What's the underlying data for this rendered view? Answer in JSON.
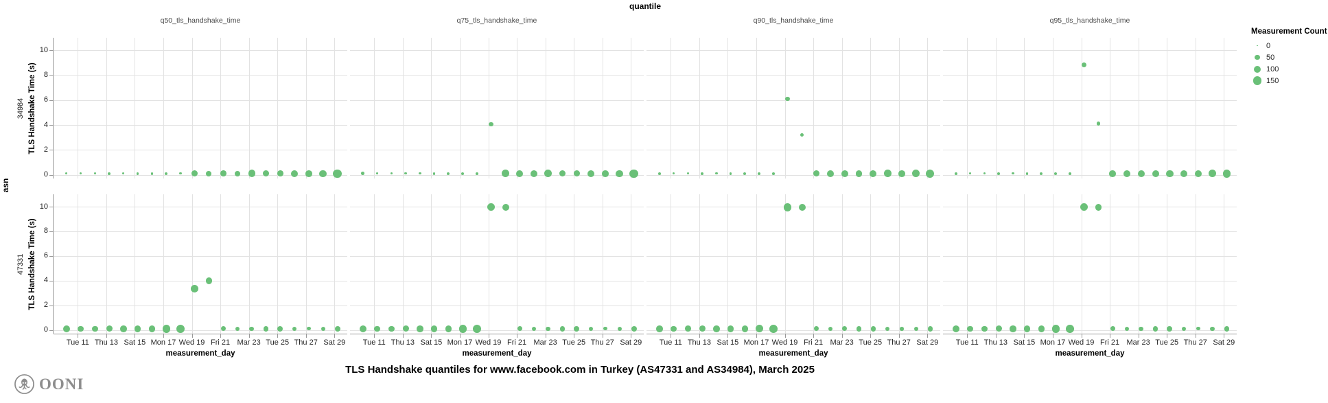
{
  "header": {
    "column_title": "quantile",
    "row_title": "asn"
  },
  "facets": [
    {
      "title": "q50_tls_handshake_time"
    },
    {
      "title": "q75_tls_handshake_time"
    },
    {
      "title": "q90_tls_handshake_time"
    },
    {
      "title": "q95_tls_handshake_time"
    }
  ],
  "rows": [
    {
      "label": "34984"
    },
    {
      "label": "47331"
    }
  ],
  "y_axis": {
    "title": "TLS Handshake Time (s)",
    "ticks": [
      0,
      2,
      4,
      6,
      8,
      10
    ]
  },
  "x_axis": {
    "title": "measurement_day",
    "ticks": [
      {
        "day": 11,
        "label": "Tue 11"
      },
      {
        "day": 13,
        "label": "Thu 13"
      },
      {
        "day": 15,
        "label": "Sat 15"
      },
      {
        "day": 17,
        "label": "Mon 17"
      },
      {
        "day": 19,
        "label": "Wed 19"
      },
      {
        "day": 21,
        "label": "Fri 21"
      },
      {
        "day": 23,
        "label": "Mar 23"
      },
      {
        "day": 25,
        "label": "Tue 25"
      },
      {
        "day": 27,
        "label": "Thu 27"
      },
      {
        "day": 29,
        "label": "Sat 29"
      }
    ]
  },
  "legend": {
    "title": "Measurement Count",
    "items": [
      {
        "label": "0",
        "count": 0
      },
      {
        "label": "50",
        "count": 50
      },
      {
        "label": "100",
        "count": 100
      },
      {
        "label": "150",
        "count": 150
      }
    ]
  },
  "main_title": "TLS Handshake quantiles for www.facebook.com in Turkey (AS47331 and AS34984), March 2025",
  "logo_text": "OONI",
  "colors": {
    "dot": "#6ac078",
    "grid": "#e2e2e2",
    "axis": "#999999",
    "label": "#262626"
  },
  "chart_data": {
    "type": "scatter",
    "title": "TLS Handshake quantiles for www.facebook.com in Turkey (AS47331 and AS34984), March 2025",
    "xlabel": "measurement_day",
    "ylabel": "TLS Handshake Time (s)",
    "x_unit": "day of March 2025",
    "ylim": [
      0,
      10
    ],
    "size_encoding": "Measurement Count",
    "point_format": "[day, tls_handshake_time_s, measurement_count]",
    "panels": [
      {
        "quantile": "q50_tls_handshake_time",
        "asn": "34984",
        "points": [
          [
            10,
            0.1,
            12
          ],
          [
            11,
            0.1,
            10
          ],
          [
            12,
            0.1,
            12
          ],
          [
            13,
            0.1,
            14
          ],
          [
            14,
            0.1,
            10
          ],
          [
            15,
            0.1,
            14
          ],
          [
            16,
            0.1,
            14
          ],
          [
            17,
            0.1,
            16
          ],
          [
            18,
            0.1,
            12
          ],
          [
            19,
            0.1,
            85
          ],
          [
            20,
            0.1,
            65
          ],
          [
            21,
            0.1,
            76
          ],
          [
            22,
            0.1,
            64
          ],
          [
            23,
            0.1,
            114
          ],
          [
            24,
            0.1,
            87
          ],
          [
            25,
            0.1,
            76
          ],
          [
            26,
            0.1,
            100
          ],
          [
            27,
            0.1,
            95
          ],
          [
            28,
            0.1,
            110
          ],
          [
            29,
            0.1,
            150
          ]
        ]
      },
      {
        "quantile": "q75_tls_handshake_time",
        "asn": "34984",
        "points": [
          [
            10,
            0.1,
            22
          ],
          [
            11,
            0.1,
            8
          ],
          [
            12,
            0.1,
            8
          ],
          [
            13,
            0.1,
            10
          ],
          [
            14,
            0.1,
            12
          ],
          [
            15,
            0.1,
            14
          ],
          [
            16,
            0.1,
            16
          ],
          [
            17,
            0.1,
            18
          ],
          [
            18,
            0.1,
            14
          ],
          [
            19,
            4.05,
            45
          ],
          [
            20,
            0.1,
            114
          ],
          [
            21,
            0.1,
            110
          ],
          [
            22,
            0.1,
            100
          ],
          [
            23,
            0.1,
            115
          ],
          [
            24,
            0.1,
            90
          ],
          [
            25,
            0.1,
            85
          ],
          [
            26,
            0.1,
            100
          ],
          [
            27,
            0.1,
            95
          ],
          [
            28,
            0.1,
            110
          ],
          [
            29,
            0.1,
            150
          ]
        ]
      },
      {
        "quantile": "q90_tls_handshake_time",
        "asn": "34984",
        "points": [
          [
            10,
            0.1,
            15
          ],
          [
            11,
            0.1,
            10
          ],
          [
            12,
            0.1,
            12
          ],
          [
            13,
            0.1,
            14
          ],
          [
            14,
            0.1,
            12
          ],
          [
            15,
            0.1,
            14
          ],
          [
            16,
            0.1,
            16
          ],
          [
            17,
            0.1,
            20
          ],
          [
            18,
            0.1,
            14
          ],
          [
            19,
            6.1,
            45
          ],
          [
            20,
            3.2,
            30
          ],
          [
            21,
            0.1,
            90
          ],
          [
            22,
            0.1,
            100
          ],
          [
            23,
            0.1,
            110
          ],
          [
            24,
            0.1,
            95
          ],
          [
            25,
            0.1,
            100
          ],
          [
            26,
            0.1,
            115
          ],
          [
            27,
            0.1,
            95
          ],
          [
            28,
            0.1,
            120
          ],
          [
            29,
            0.1,
            145
          ]
        ]
      },
      {
        "quantile": "q95_tls_handshake_time",
        "asn": "34984",
        "points": [
          [
            10,
            0.1,
            15
          ],
          [
            11,
            0.1,
            10
          ],
          [
            12,
            0.1,
            12
          ],
          [
            13,
            0.1,
            14
          ],
          [
            14,
            0.1,
            12
          ],
          [
            15,
            0.1,
            14
          ],
          [
            16,
            0.1,
            16
          ],
          [
            17,
            0.1,
            20
          ],
          [
            18,
            0.1,
            14
          ],
          [
            19,
            8.85,
            50
          ],
          [
            20,
            4.1,
            30
          ],
          [
            21,
            0.1,
            95
          ],
          [
            22,
            0.1,
            100
          ],
          [
            23,
            0.1,
            105
          ],
          [
            24,
            0.1,
            100
          ],
          [
            25,
            0.1,
            110
          ],
          [
            26,
            0.1,
            100
          ],
          [
            27,
            0.1,
            110
          ],
          [
            28,
            0.1,
            120
          ],
          [
            29,
            0.1,
            140
          ]
        ]
      },
      {
        "quantile": "q50_tls_handshake_time",
        "asn": "47331",
        "points": [
          [
            10,
            0.1,
            100
          ],
          [
            11,
            0.1,
            75
          ],
          [
            12,
            0.1,
            75
          ],
          [
            13,
            0.1,
            81
          ],
          [
            14,
            0.1,
            94
          ],
          [
            15,
            0.1,
            94
          ],
          [
            16,
            0.1,
            87
          ],
          [
            17,
            0.1,
            128
          ],
          [
            18,
            0.1,
            144
          ],
          [
            19,
            3.35,
            114
          ],
          [
            20,
            4.0,
            94
          ],
          [
            21,
            0.1,
            53
          ],
          [
            22,
            0.1,
            45
          ],
          [
            23,
            0.1,
            45
          ],
          [
            24,
            0.1,
            59
          ],
          [
            25,
            0.1,
            64
          ],
          [
            26,
            0.1,
            36
          ],
          [
            27,
            0.1,
            28
          ],
          [
            28,
            0.1,
            40
          ],
          [
            29,
            0.1,
            64
          ]
        ]
      },
      {
        "quantile": "q75_tls_handshake_time",
        "asn": "47331",
        "points": [
          [
            10,
            0.1,
            100
          ],
          [
            11,
            0.1,
            75
          ],
          [
            12,
            0.1,
            75
          ],
          [
            13,
            0.1,
            81
          ],
          [
            14,
            0.1,
            94
          ],
          [
            15,
            0.1,
            94
          ],
          [
            16,
            0.1,
            87
          ],
          [
            17,
            0.1,
            128
          ],
          [
            18,
            0.1,
            144
          ],
          [
            19,
            9.95,
            120
          ],
          [
            20,
            9.95,
            100
          ],
          [
            21,
            0.1,
            53
          ],
          [
            22,
            0.1,
            45
          ],
          [
            23,
            0.1,
            45
          ],
          [
            24,
            0.1,
            59
          ],
          [
            25,
            0.1,
            64
          ],
          [
            26,
            0.1,
            36
          ],
          [
            27,
            0.1,
            28
          ],
          [
            28,
            0.1,
            40
          ],
          [
            29,
            0.1,
            64
          ]
        ]
      },
      {
        "quantile": "q90_tls_handshake_time",
        "asn": "47331",
        "points": [
          [
            10,
            0.1,
            95
          ],
          [
            11,
            0.1,
            70
          ],
          [
            12,
            0.1,
            78
          ],
          [
            13,
            0.1,
            80
          ],
          [
            14,
            0.1,
            94
          ],
          [
            15,
            0.1,
            90
          ],
          [
            16,
            0.1,
            87
          ],
          [
            17,
            0.1,
            125
          ],
          [
            18,
            0.1,
            140
          ],
          [
            19,
            9.95,
            128
          ],
          [
            20,
            9.95,
            100
          ],
          [
            21,
            0.1,
            50
          ],
          [
            22,
            0.1,
            45
          ],
          [
            23,
            0.1,
            48
          ],
          [
            24,
            0.1,
            59
          ],
          [
            25,
            0.1,
            60
          ],
          [
            26,
            0.1,
            36
          ],
          [
            27,
            0.1,
            30
          ],
          [
            28,
            0.1,
            40
          ],
          [
            29,
            0.1,
            60
          ]
        ]
      },
      {
        "quantile": "q95_tls_handshake_time",
        "asn": "47331",
        "points": [
          [
            10,
            0.1,
            100
          ],
          [
            11,
            0.1,
            72
          ],
          [
            12,
            0.1,
            75
          ],
          [
            13,
            0.1,
            82
          ],
          [
            14,
            0.1,
            90
          ],
          [
            15,
            0.1,
            94
          ],
          [
            16,
            0.1,
            87
          ],
          [
            17,
            0.1,
            128
          ],
          [
            18,
            0.1,
            140
          ],
          [
            19,
            9.95,
            125
          ],
          [
            20,
            9.95,
            98
          ],
          [
            21,
            0.1,
            53
          ],
          [
            22,
            0.1,
            45
          ],
          [
            23,
            0.1,
            45
          ],
          [
            24,
            0.1,
            55
          ],
          [
            25,
            0.1,
            64
          ],
          [
            26,
            0.1,
            36
          ],
          [
            27,
            0.1,
            28
          ],
          [
            28,
            0.1,
            42
          ],
          [
            29,
            0.1,
            60
          ]
        ]
      }
    ]
  }
}
